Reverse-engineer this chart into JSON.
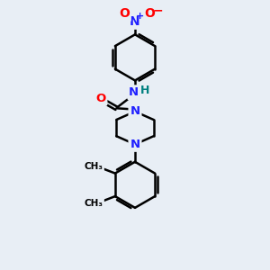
{
  "bg_color": "#e8eef5",
  "line_color": "#000000",
  "bond_width": 1.8,
  "atom_colors": {
    "N": "#2020ff",
    "O": "#ff0000",
    "C": "#000000",
    "H": "#008080"
  },
  "font_size": 9.0,
  "figsize": [
    3.0,
    3.0
  ],
  "dpi": 100,
  "xlim": [
    0,
    10
  ],
  "ylim": [
    0,
    12
  ]
}
